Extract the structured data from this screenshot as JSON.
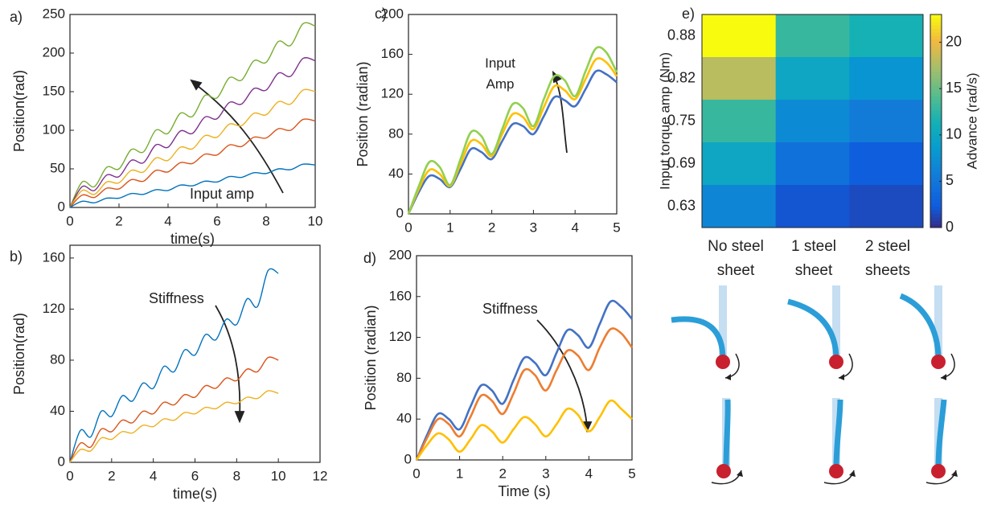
{
  "chart_data": [
    {
      "type": "line",
      "panel_label": "a)",
      "x_label": "time(s)",
      "y_label": "Position(rad)",
      "annotation": "Input amp",
      "x": [
        0,
        0.5,
        1,
        1.5,
        2,
        2.5,
        3,
        3.5,
        4,
        4.5,
        5,
        5.5,
        6,
        6.5,
        7,
        7.5,
        8,
        8.5,
        9,
        9.5,
        10
      ],
      "xlim": [
        0,
        10
      ],
      "xticks": [
        0,
        2,
        4,
        6,
        8,
        10
      ],
      "ylim": [
        0,
        250
      ],
      "yticks": [
        0,
        50,
        100,
        150,
        200,
        250
      ],
      "series": [
        {
          "color": "#77ac30",
          "values": [
            0,
            33,
            27,
            52,
            50,
            75,
            72,
            100,
            96,
            122,
            118,
            145,
            142,
            168,
            165,
            190,
            188,
            215,
            210,
            238,
            235
          ]
        },
        {
          "color": "#7e2f8e",
          "values": [
            0,
            27,
            22,
            42,
            40,
            61,
            58,
            81,
            78,
            99,
            96,
            117,
            115,
            136,
            134,
            154,
            152,
            174,
            170,
            193,
            190
          ]
        },
        {
          "color": "#edb120",
          "values": [
            0,
            22,
            17,
            33,
            32,
            48,
            46,
            64,
            61,
            78,
            76,
            93,
            91,
            108,
            106,
            122,
            120,
            137,
            134,
            152,
            150
          ]
        },
        {
          "color": "#d95319",
          "values": [
            0,
            16,
            13,
            25,
            24,
            36,
            34,
            48,
            46,
            58,
            57,
            69,
            68,
            81,
            79,
            91,
            90,
            102,
            100,
            114,
            112
          ]
        },
        {
          "color": "#0072bd",
          "values": [
            0,
            8,
            6,
            12,
            12,
            18,
            17,
            23,
            22,
            29,
            28,
            34,
            33,
            40,
            39,
            45,
            44,
            50,
            49,
            56,
            55
          ]
        }
      ]
    },
    {
      "type": "line",
      "panel_label": "b)",
      "x_label": "time(s)",
      "y_label": "Position(rad)",
      "annotation": "Stiffness",
      "x": [
        0,
        0.5,
        1,
        1.5,
        2,
        2.5,
        3,
        3.5,
        4,
        4.5,
        5,
        5.5,
        6,
        6.5,
        7,
        7.5,
        8,
        8.5,
        9,
        9.5,
        10
      ],
      "xlim": [
        0,
        12
      ],
      "xticks": [
        0,
        2,
        4,
        6,
        8,
        10,
        12
      ],
      "ylim": [
        0,
        170
      ],
      "yticks": [
        0,
        40,
        80,
        120,
        160
      ],
      "series": [
        {
          "color": "#0072bd",
          "values": [
            0,
            25,
            20,
            40,
            36,
            52,
            48,
            62,
            58,
            75,
            71,
            88,
            84,
            100,
            96,
            112,
            108,
            128,
            122,
            150,
            148
          ]
        },
        {
          "color": "#d95319",
          "values": [
            0,
            15,
            12,
            26,
            24,
            33,
            31,
            40,
            38,
            47,
            45,
            53,
            51,
            60,
            58,
            66,
            64,
            73,
            71,
            82,
            80
          ]
        },
        {
          "color": "#edb120",
          "values": [
            0,
            10,
            9,
            19,
            18,
            24,
            23,
            29,
            28,
            34,
            33,
            39,
            38,
            43,
            42,
            47,
            46,
            51,
            50,
            56,
            54
          ]
        }
      ]
    },
    {
      "type": "line",
      "panel_label": "c)",
      "y_label": "Position (radian)",
      "annotation": "Input Amp",
      "x": [
        0,
        0.25,
        0.5,
        0.75,
        1,
        1.25,
        1.5,
        1.75,
        2,
        2.25,
        2.5,
        2.75,
        3,
        3.25,
        3.5,
        3.75,
        4,
        4.25,
        4.5,
        4.75,
        5
      ],
      "xlim": [
        0,
        5
      ],
      "xticks": [
        0,
        1,
        2,
        3,
        4,
        5
      ],
      "ylim": [
        0,
        200
      ],
      "yticks": [
        0,
        40,
        80,
        120,
        160,
        200
      ],
      "series": [
        {
          "color": "#4472c4",
          "values": [
            0,
            22,
            38,
            35,
            27,
            45,
            65,
            62,
            55,
            73,
            90,
            88,
            80,
            98,
            117,
            114,
            108,
            125,
            143,
            140,
            132
          ]
        },
        {
          "color": "#ffc000",
          "values": [
            0,
            25,
            44,
            40,
            28,
            50,
            73,
            70,
            58,
            80,
            100,
            97,
            85,
            107,
            128,
            124,
            115,
            135,
            155,
            152,
            138
          ]
        },
        {
          "color": "#92d050",
          "values": [
            0,
            28,
            52,
            47,
            29,
            55,
            82,
            78,
            60,
            85,
            110,
            106,
            88,
            115,
            138,
            134,
            118,
            143,
            166,
            162,
            142
          ]
        }
      ]
    },
    {
      "type": "line",
      "panel_label": "d)",
      "x_label": "Time (s)",
      "y_label": "Position (radian)",
      "annotation": "Stiffness",
      "x": [
        0,
        0.25,
        0.5,
        0.75,
        1,
        1.25,
        1.5,
        1.75,
        2,
        2.25,
        2.5,
        2.75,
        3,
        3.25,
        3.5,
        3.75,
        4,
        4.25,
        4.5,
        4.75,
        5
      ],
      "xlim": [
        0,
        5
      ],
      "xticks": [
        0,
        1,
        2,
        3,
        4,
        5
      ],
      "ylim": [
        0,
        200
      ],
      "yticks": [
        0,
        40,
        80,
        120,
        160,
        200
      ],
      "series": [
        {
          "color": "#4472c4",
          "values": [
            0,
            25,
            45,
            40,
            30,
            52,
            73,
            68,
            55,
            78,
            100,
            95,
            83,
            105,
            127,
            122,
            110,
            133,
            155,
            150,
            138
          ]
        },
        {
          "color": "#ed7d31",
          "values": [
            0,
            22,
            40,
            35,
            23,
            42,
            63,
            58,
            45,
            65,
            88,
            83,
            68,
            88,
            107,
            102,
            88,
            110,
            128,
            124,
            110
          ]
        },
        {
          "color": "#ffc000",
          "values": [
            0,
            15,
            26,
            20,
            8,
            20,
            34,
            28,
            17,
            30,
            42,
            35,
            23,
            35,
            50,
            44,
            28,
            42,
            58,
            50,
            40
          ]
        }
      ]
    },
    {
      "type": "heatmap",
      "panel_label": "e)",
      "y_label": "Input torque amp (Nm)",
      "colorbar_label": "Advance (rad/s)",
      "rows": [
        "0.88",
        "0.82",
        "0.75",
        "0.69",
        "0.63"
      ],
      "columns": [
        "No steel sheet",
        "1 steel sheet",
        "2 steel sheets"
      ],
      "values": [
        [
          23,
          13,
          11.5
        ],
        [
          18,
          10,
          8
        ],
        [
          13,
          7,
          5.5
        ],
        [
          10,
          4.5,
          2.5
        ],
        [
          6.5,
          2,
          1.5
        ]
      ],
      "clim": [
        0,
        23
      ],
      "cticks": [
        0,
        5,
        10,
        15,
        20
      ]
    }
  ]
}
